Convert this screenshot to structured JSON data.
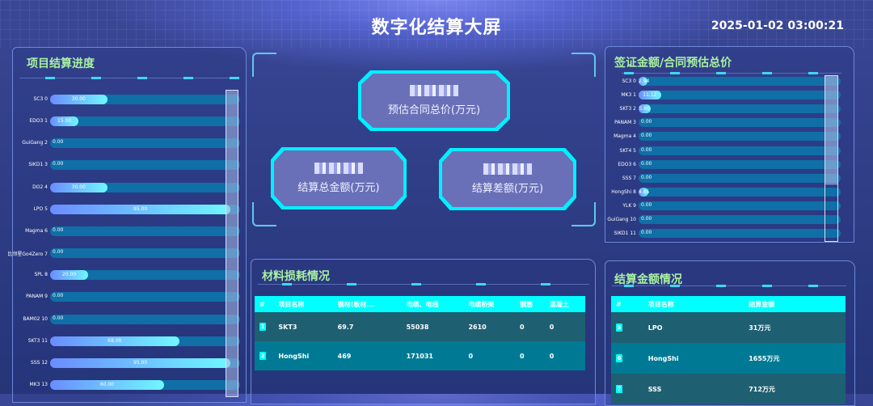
{
  "header": {
    "title": "数字化结算大屏",
    "datetime": "2025-01-02 03:00:21"
  },
  "left_panel": {
    "title": "项目结算进度",
    "chart_data": {
      "type": "bar",
      "orientation": "horizontal",
      "xlim": [
        0,
        100
      ],
      "categories": [
        "SC3 0",
        "EDO3 1",
        "GuiGang 2",
        "SIKD1 3",
        "DO2 4",
        "LPO 5",
        "Magma 6",
        "比邻星Go4Zero 7",
        "SPL 8",
        "PANAM 9",
        "BAM02 10",
        "SKT3 11",
        "SSS 12",
        "MK3 13"
      ],
      "values": [
        30,
        15,
        0,
        0,
        30,
        95,
        0,
        0,
        20,
        0,
        0,
        68,
        95,
        60
      ],
      "labels": [
        "30.00",
        "15.00",
        "0.00",
        "0.00",
        "30.00",
        "95.00",
        "0.00",
        "0.00",
        "20.00",
        "0.00",
        "0.00",
        "68.00",
        "95.00",
        "60.00"
      ]
    }
  },
  "center_panel": {
    "cards": [
      {
        "label": "预估合同总价(万元)"
      },
      {
        "label": "结算总金额(万元)"
      },
      {
        "label": "结算差额(万元)"
      }
    ]
  },
  "right_top_panel": {
    "title": "签证金额/合同预估总价",
    "chart_data": {
      "type": "bar",
      "orientation": "horizontal",
      "xlim": [
        0,
        100
      ],
      "categories": [
        "SC3 0",
        "MK3 1",
        "SKT3 2",
        "PANAM 3",
        "Magma 4",
        "SKT4 5",
        "EDO3 6",
        "SSS 7",
        "HongShi 8",
        "YLK 9",
        "GuiGang 10",
        "SIKD1 11"
      ],
      "values": [
        2.94,
        11.12,
        5.8,
        0,
        0,
        0,
        0,
        0,
        4.85,
        0,
        0,
        0
      ],
      "labels": [
        "2.94",
        "11.12",
        "5.80",
        "0.00",
        "0.00",
        "0.00",
        "0.00",
        "0.00",
        "4.85",
        "0.00",
        "0.00",
        "0.00"
      ]
    }
  },
  "material_panel": {
    "title": "材料损耗情况",
    "columns": [
      "#",
      "项目名称",
      "钢材(板材...",
      "电缆、电线",
      "电缆桥架",
      "钢筋",
      "混凝土"
    ],
    "rows": [
      [
        "1",
        "SKT3",
        "69.7",
        "55038",
        "2610",
        "0",
        "0"
      ],
      [
        "2",
        "HongShi",
        "469",
        "171031",
        "0",
        "0",
        "0"
      ]
    ]
  },
  "settlement_panel": {
    "title": "结算金额情况",
    "columns": [
      "#",
      "项目名称",
      "结算金额"
    ],
    "rows": [
      [
        "5",
        "LPO",
        "31万元"
      ],
      [
        "6",
        "HongShi",
        "1655万元"
      ],
      [
        "7",
        "SSS",
        "712万元"
      ]
    ]
  },
  "colors": {
    "accent": "#00ffff",
    "title_green": "#a8f0a0",
    "bar_track": "#0f6fa6"
  }
}
